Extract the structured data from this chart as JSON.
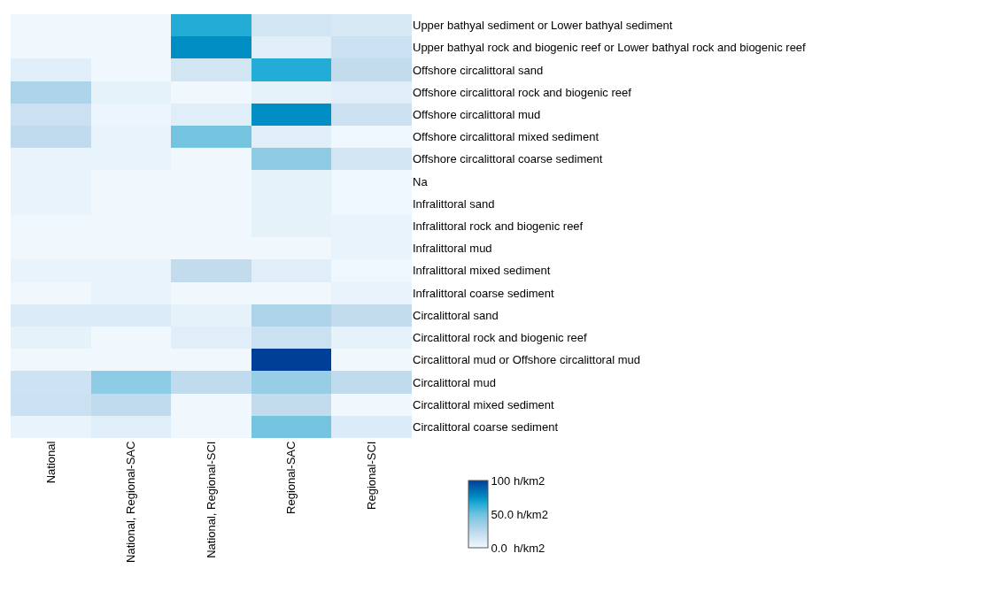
{
  "chart_data": {
    "type": "heatmap",
    "categories": [
      "National",
      "National, Regional-SAC",
      "National, Regional-SCI",
      "Regional-SAC",
      "Regional-SCI"
    ],
    "y_categories": [
      "Upper bathyal sediment or Lower bathyal sediment",
      "Upper bathyal rock and biogenic reef or Lower bathyal rock and biogenic reef",
      "Offshore circalittoral sand",
      "Offshore circalittoral rock and biogenic reef",
      "Offshore circalittoral mud",
      "Offshore circalittoral mixed sediment",
      "Offshore circalittoral coarse sediment",
      "Na",
      "Infralittoral sand",
      "Infralittoral rock and biogenic reef",
      "Infralittoral mud",
      "Infralittoral mixed sediment",
      "Infralittoral coarse sediment",
      "Circalittoral sand",
      "Circalittoral rock and biogenic reef",
      "Circalittoral mud or Offshore circalittoral mud",
      "Circalittoral mud",
      "Circalittoral mixed sediment",
      "Circalittoral coarse sediment"
    ],
    "cells": [
      [
        0,
        0,
        65,
        15,
        12
      ],
      [
        0,
        0,
        75,
        8,
        18
      ],
      [
        8,
        0,
        15,
        65,
        22
      ],
      [
        30,
        5,
        0,
        5,
        8
      ],
      [
        18,
        2,
        8,
        75,
        18
      ],
      [
        23,
        4,
        48,
        8,
        1
      ],
      [
        4,
        4,
        0,
        40,
        15
      ],
      [
        4,
        0,
        0,
        5,
        1
      ],
      [
        4,
        0,
        0,
        5,
        1
      ],
      [
        0,
        0,
        0,
        5,
        4
      ],
      [
        0,
        0,
        0,
        0,
        4
      ],
      [
        4,
        4,
        22,
        8,
        1
      ],
      [
        0,
        4,
        0,
        0,
        4
      ],
      [
        10,
        10,
        5,
        30,
        22
      ],
      [
        5,
        0,
        8,
        18,
        5
      ],
      [
        0,
        0,
        0,
        100,
        0
      ],
      [
        17,
        40,
        23,
        37,
        23
      ],
      [
        18,
        23,
        0,
        22,
        0
      ],
      [
        4,
        8,
        0,
        48,
        10
      ]
    ],
    "clim": [
      0,
      100
    ],
    "cticks": [
      {
        "value": 0,
        "label": "0.0  h/km2"
      },
      {
        "value": 50,
        "label": "50.0 h/km2"
      },
      {
        "value": 100,
        "label": "100 h/km2"
      }
    ]
  }
}
